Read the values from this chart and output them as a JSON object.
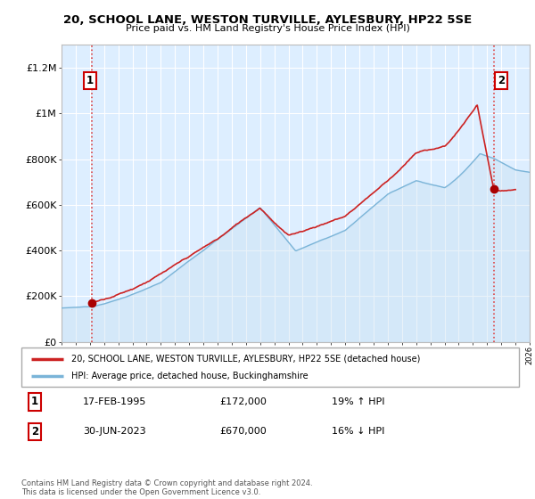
{
  "title": "20, SCHOOL LANE, WESTON TURVILLE, AYLESBURY, HP22 5SE",
  "subtitle": "Price paid vs. HM Land Registry's House Price Index (HPI)",
  "ylim": [
    0,
    1300000
  ],
  "yticks": [
    0,
    200000,
    400000,
    600000,
    800000,
    1000000,
    1200000
  ],
  "ytick_labels": [
    "£0",
    "£200K",
    "£400K",
    "£600K",
    "£800K",
    "£1M",
    "£1.2M"
  ],
  "legend_line1": "20, SCHOOL LANE, WESTON TURVILLE, AYLESBURY, HP22 5SE (detached house)",
  "legend_line2": "HPI: Average price, detached house, Buckinghamshire",
  "annotation1_date": "17-FEB-1995",
  "annotation1_price": "£172,000",
  "annotation1_hpi": "19% ↑ HPI",
  "annotation2_date": "30-JUN-2023",
  "annotation2_price": "£670,000",
  "annotation2_hpi": "16% ↓ HPI",
  "footer": "Contains HM Land Registry data © Crown copyright and database right 2024.\nThis data is licensed under the Open Government Licence v3.0.",
  "sale1_x": 1995.12,
  "sale1_y": 172000,
  "sale2_x": 2023.49,
  "sale2_y": 670000,
  "hpi_color": "#7ab4d8",
  "hpi_fill_color": "#c8dff0",
  "price_color": "#cc2222",
  "marker_color": "#aa0000",
  "vline_color": "#dd4444",
  "grid_color": "#cccccc",
  "bg_color": "#ddeeff",
  "xlim_left": 1993,
  "xlim_right": 2026
}
